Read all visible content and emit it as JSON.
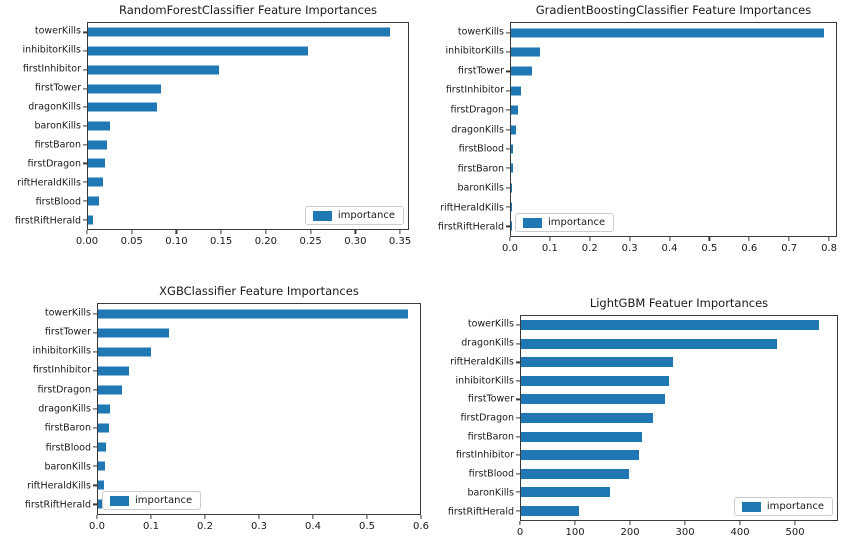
{
  "figure": {
    "background": "#ffffff"
  },
  "colors": {
    "bar": "#1f77b4",
    "spine": "#3a3a3a",
    "legend_border": "#cccccc"
  },
  "chart_data": [
    {
      "type": "bar",
      "orientation": "horizontal",
      "title": "RandomForestClassifier Feature Importances",
      "categories": [
        "towerKills",
        "inhibitorKills",
        "firstInhibitor",
        "firstTower",
        "dragonKills",
        "baronKills",
        "firstBaron",
        "firstDragon",
        "riftHeraldKills",
        "firstBlood",
        "firstRiftHerald"
      ],
      "values": [
        0.34,
        0.247,
        0.147,
        0.082,
        0.078,
        0.025,
        0.021,
        0.019,
        0.017,
        0.012,
        0.006
      ],
      "x_tick_labels": [
        "0.00",
        "0.05",
        "0.10",
        "0.15",
        "0.20",
        "0.25",
        "0.30",
        "0.35"
      ],
      "x_tick_values": [
        0,
        0.05,
        0.1,
        0.15,
        0.2,
        0.25,
        0.3,
        0.35
      ],
      "xlim": [
        0,
        0.36
      ],
      "grid": false,
      "legend_label": "importance",
      "legend_position": "bottom-right"
    },
    {
      "type": "bar",
      "orientation": "horizontal",
      "title": "GradientBoostingClassifier Feature Importances",
      "categories": [
        "towerKills",
        "inhibitorKills",
        "firstTower",
        "firstInhibitor",
        "firstDragon",
        "dragonKills",
        "firstBlood",
        "firstBaron",
        "baronKills",
        "riftHeraldKills",
        "firstRiftHerald"
      ],
      "values": [
        0.79,
        0.072,
        0.053,
        0.025,
        0.018,
        0.013,
        0.005,
        0.005,
        0.002,
        0.001,
        0.001
      ],
      "x_tick_labels": [
        "0.0",
        "0.1",
        "0.2",
        "0.3",
        "0.4",
        "0.5",
        "0.6",
        "0.7",
        "0.8"
      ],
      "x_tick_values": [
        0,
        0.1,
        0.2,
        0.3,
        0.4,
        0.5,
        0.6,
        0.7,
        0.8
      ],
      "xlim": [
        0,
        0.82
      ],
      "grid": false,
      "legend_label": "importance",
      "legend_position": "bottom-left"
    },
    {
      "type": "bar",
      "orientation": "horizontal",
      "title": "XGBClassifier Feature Importances",
      "categories": [
        "towerKills",
        "firstTower",
        "inhibitorKills",
        "firstInhibitor",
        "firstDragon",
        "dragonKills",
        "firstBaron",
        "firstBlood",
        "baronKills",
        "riftHeraldKills",
        "firstRiftHerald"
      ],
      "values": [
        0.578,
        0.133,
        0.098,
        0.058,
        0.044,
        0.023,
        0.02,
        0.015,
        0.013,
        0.011,
        0.008
      ],
      "x_tick_labels": [
        "0.0",
        "0.1",
        "0.2",
        "0.3",
        "0.4",
        "0.5",
        "0.6"
      ],
      "x_tick_values": [
        0,
        0.1,
        0.2,
        0.3,
        0.4,
        0.5,
        0.6
      ],
      "xlim": [
        0,
        0.6
      ],
      "grid": false,
      "legend_label": "importance",
      "legend_position": "bottom-left"
    },
    {
      "type": "bar",
      "orientation": "horizontal",
      "title": "LightGBM Featuer Importances",
      "categories": [
        "towerKills",
        "dragonKills",
        "riftHeraldKills",
        "inhibitorKills",
        "firstTower",
        "firstDragon",
        "firstBaron",
        "firstInhibitor",
        "firstBlood",
        "baronKills",
        "firstRiftHerald"
      ],
      "values": [
        545,
        468,
        278,
        270,
        263,
        242,
        222,
        215,
        198,
        162,
        107
      ],
      "x_tick_labels": [
        "0",
        "100",
        "200",
        "300",
        "400",
        "500"
      ],
      "x_tick_values": [
        0,
        100,
        200,
        300,
        400,
        500
      ],
      "xlim": [
        0,
        578
      ],
      "grid": false,
      "legend_label": "importance",
      "legend_position": "bottom-right"
    }
  ]
}
